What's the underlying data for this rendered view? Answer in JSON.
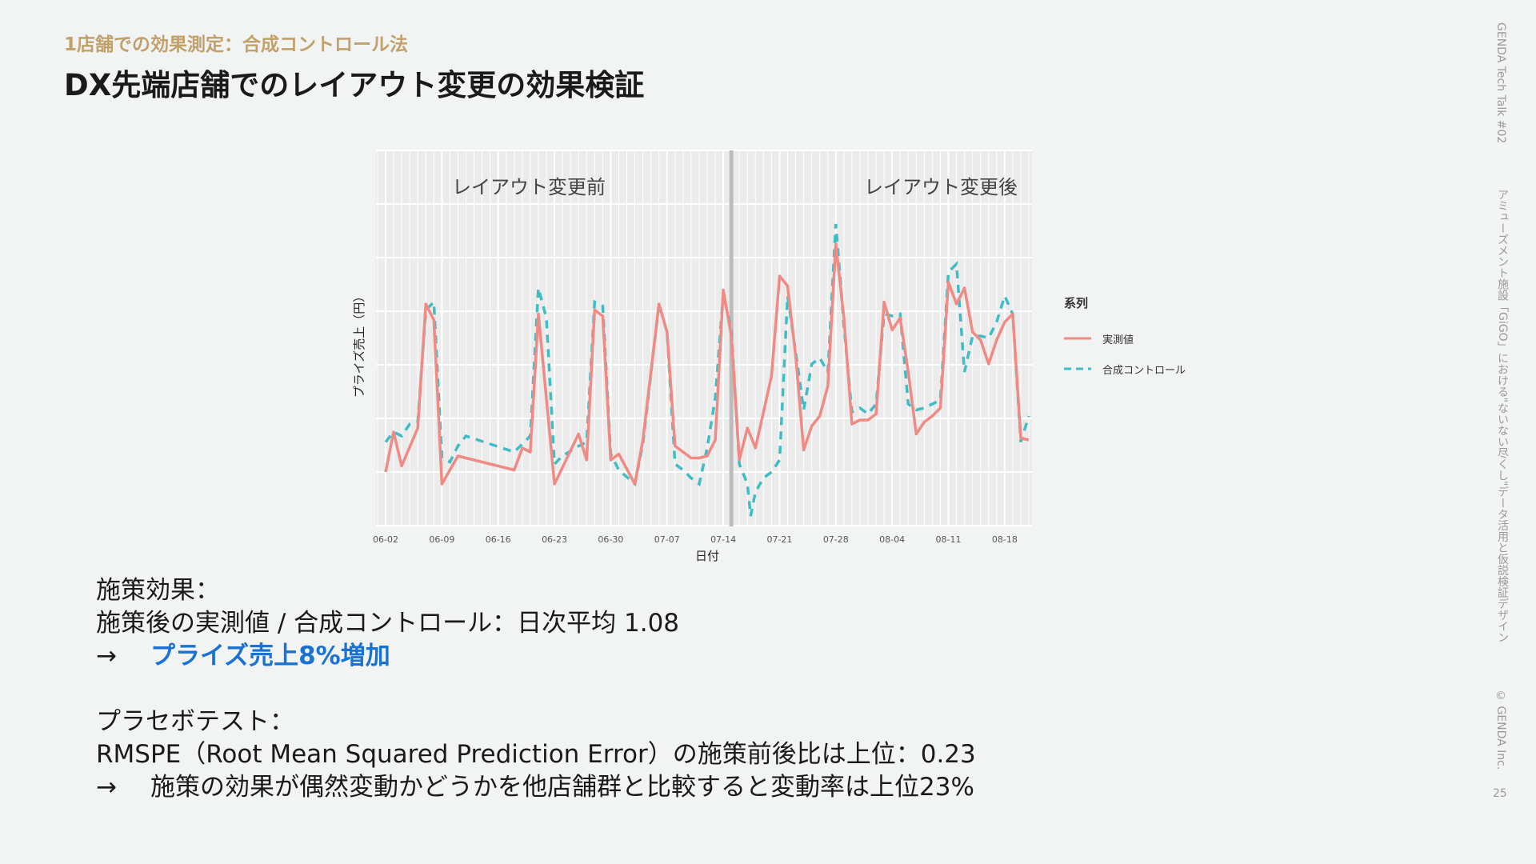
{
  "header": {
    "kicker": "1店舗での効果測定：合成コントロール法",
    "title": "DX先端店舗でのレイアウト変更の効果検証"
  },
  "side": {
    "event": "GENDA Tech Talk #02",
    "talk": "アミューズメント施設「GiGO」における\"ないない尽くし\"データ活用と仮説検証デザイン",
    "copyright": "© GENDA Inc.",
    "page": "25"
  },
  "legend": {
    "title": "系列",
    "actual": "実測値",
    "synthetic": "合成コントロール"
  },
  "colors": {
    "actual": "#f08a84",
    "synthetic": "#3fbcc4",
    "accent": "#1a73d2",
    "kicker": "#c2a06a"
  },
  "chart_data": {
    "type": "line",
    "xlabel": "日付",
    "ylabel": "プライズ売上（円）",
    "x_ticks": [
      "06-02",
      "06-09",
      "06-16",
      "06-23",
      "06-30",
      "07-07",
      "07-14",
      "07-21",
      "07-28",
      "08-04",
      "08-11",
      "08-18"
    ],
    "annotations": {
      "before": "レイアウト変更前",
      "after": "レイアウト変更後"
    },
    "intervention_date": "07-15",
    "series": [
      {
        "name": "実測値",
        "style": "solid",
        "points": [
          [
            0,
            0.12
          ],
          [
            1,
            0.32
          ],
          [
            2,
            0.15
          ],
          [
            4,
            0.34
          ],
          [
            5,
            0.96
          ],
          [
            6,
            0.88
          ],
          [
            7,
            0.06
          ],
          [
            9,
            0.2
          ],
          [
            10,
            0.19
          ],
          [
            16,
            0.13
          ],
          [
            17,
            0.24
          ],
          [
            18,
            0.22
          ],
          [
            19,
            0.91
          ],
          [
            21,
            0.06
          ],
          [
            24,
            0.31
          ],
          [
            25,
            0.18
          ],
          [
            26,
            0.93
          ],
          [
            27,
            0.9
          ],
          [
            28,
            0.18
          ],
          [
            29,
            0.21
          ],
          [
            31,
            0.06
          ],
          [
            32,
            0.28
          ],
          [
            34,
            0.96
          ],
          [
            35,
            0.82
          ],
          [
            36,
            0.25
          ],
          [
            38,
            0.19
          ],
          [
            39,
            0.19
          ],
          [
            40,
            0.2
          ],
          [
            41,
            0.28
          ],
          [
            42,
            1.03
          ],
          [
            43,
            0.8
          ],
          [
            44,
            0.18
          ],
          [
            45,
            0.34
          ],
          [
            46,
            0.24
          ],
          [
            47,
            0.42
          ],
          [
            48,
            0.6
          ],
          [
            49,
            1.1
          ],
          [
            50,
            1.05
          ],
          [
            51,
            0.7
          ],
          [
            52,
            0.23
          ],
          [
            53,
            0.35
          ],
          [
            54,
            0.4
          ],
          [
            55,
            0.55
          ],
          [
            56,
            1.26
          ],
          [
            57,
            0.89
          ],
          [
            58,
            0.36
          ],
          [
            59,
            0.38
          ],
          [
            60,
            0.38
          ],
          [
            61,
            0.41
          ],
          [
            62,
            0.97
          ],
          [
            63,
            0.83
          ],
          [
            64,
            0.89
          ],
          [
            65,
            0.62
          ],
          [
            66,
            0.31
          ],
          [
            67,
            0.37
          ],
          [
            68,
            0.4
          ],
          [
            69,
            0.44
          ],
          [
            70,
            1.07
          ],
          [
            71,
            0.96
          ],
          [
            72,
            1.04
          ],
          [
            73,
            0.82
          ],
          [
            74,
            0.78
          ],
          [
            75,
            0.66
          ],
          [
            76,
            0.78
          ],
          [
            77,
            0.87
          ],
          [
            78,
            0.91
          ],
          [
            79,
            0.29
          ],
          [
            80,
            0.28
          ]
        ]
      },
      {
        "name": "合成コントロール",
        "style": "dashed",
        "points": [
          [
            0,
            0.27
          ],
          [
            1,
            0.32
          ],
          [
            2,
            0.3
          ],
          [
            3,
            0.36
          ],
          [
            4,
            0.37
          ],
          [
            5,
            0.93
          ],
          [
            6,
            0.97
          ],
          [
            7,
            0.19
          ],
          [
            8,
            0.17
          ],
          [
            9,
            0.25
          ],
          [
            10,
            0.3
          ],
          [
            16,
            0.22
          ],
          [
            17,
            0.26
          ],
          [
            18,
            0.3
          ],
          [
            19,
            1.04
          ],
          [
            20,
            0.89
          ],
          [
            21,
            0.16
          ],
          [
            22,
            0.2
          ],
          [
            24,
            0.25
          ],
          [
            25,
            0.27
          ],
          [
            26,
            0.97
          ],
          [
            27,
            0.95
          ],
          [
            28,
            0.21
          ],
          [
            29,
            0.13
          ],
          [
            31,
            0.06
          ],
          [
            32,
            0.26
          ],
          [
            34,
            0.96
          ],
          [
            35,
            0.82
          ],
          [
            36,
            0.16
          ],
          [
            37,
            0.13
          ],
          [
            38,
            0.09
          ],
          [
            39,
            0.06
          ],
          [
            40,
            0.24
          ],
          [
            41,
            0.49
          ],
          [
            42,
            1.01
          ],
          [
            43,
            0.83
          ],
          [
            44,
            0.16
          ],
          [
            45,
            0.06
          ],
          [
            45.4,
            -0.1
          ],
          [
            46,
            0.02
          ],
          [
            47,
            0.09
          ],
          [
            48,
            0.12
          ],
          [
            49,
            0.18
          ],
          [
            50,
            1.0
          ],
          [
            51,
            0.72
          ],
          [
            52,
            0.43
          ],
          [
            53,
            0.66
          ],
          [
            54,
            0.69
          ],
          [
            55,
            0.62
          ],
          [
            56,
            1.36
          ],
          [
            57,
            0.85
          ],
          [
            58,
            0.42
          ],
          [
            59,
            0.44
          ],
          [
            60,
            0.41
          ],
          [
            61,
            0.46
          ],
          [
            62,
            0.91
          ],
          [
            63,
            0.9
          ],
          [
            64,
            0.91
          ],
          [
            65,
            0.46
          ],
          [
            66,
            0.43
          ],
          [
            67,
            0.44
          ],
          [
            68,
            0.46
          ],
          [
            69,
            0.48
          ],
          [
            70,
            1.12
          ],
          [
            71,
            1.16
          ],
          [
            72,
            0.62
          ],
          [
            73,
            0.8
          ],
          [
            74,
            0.8
          ],
          [
            75,
            0.79
          ],
          [
            76,
            0.87
          ],
          [
            77,
            1.0
          ],
          [
            78,
            0.91
          ],
          [
            79,
            0.27
          ],
          [
            80,
            0.4
          ]
        ]
      }
    ]
  },
  "summary": {
    "effect_heading": "施策効果：",
    "effect_ratio": "施策後の実測値 / 合成コントロール：日次平均 1.08",
    "arrow": "→",
    "effect_result": "プライズ売上8%増加",
    "placebo_heading": "プラセボテスト：",
    "placebo_ratio": "RMSPE（Root Mean Squared Prediction Error）の施策前後比は上位：0.23",
    "placebo_result": "施策の効果が偶然変動かどうかを他店舗群と比較すると変動率は上位23%"
  }
}
